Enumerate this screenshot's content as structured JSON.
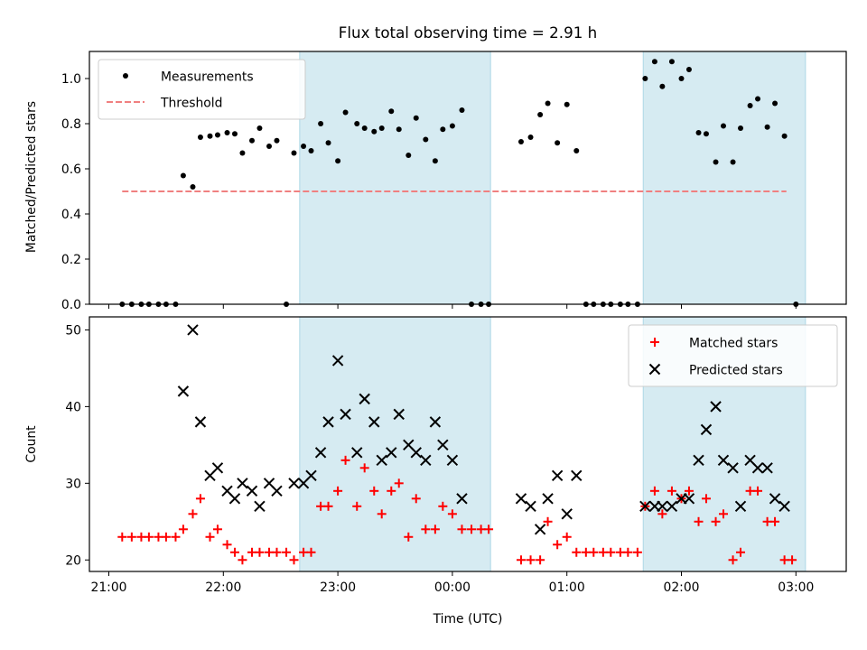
{
  "chart_data": [
    {
      "type": "scatter",
      "title": "Flux total observing time = 2.91 h",
      "xlabel": "",
      "ylabel": "Matched/Predicted stars",
      "ylim": [
        0,
        1.12
      ],
      "yticks": [
        "0.0",
        "0.2",
        "0.4",
        "0.6",
        "0.8",
        "1.0"
      ],
      "ytick_values": [
        0,
        0.2,
        0.4,
        0.6,
        0.8,
        1.0
      ],
      "legend_position": "top-left",
      "shaded_intervals": [
        [
          "22:40",
          "00:20"
        ],
        [
          "01:40",
          "03:05"
        ]
      ],
      "series": [
        {
          "name": "Measurements",
          "color": "#000000",
          "marker": "dot",
          "points": [
            [
              "21:07",
              0.0
            ],
            [
              "21:12",
              0.0
            ],
            [
              "21:17",
              0.0
            ],
            [
              "21:21",
              0.0
            ],
            [
              "21:26",
              0.0
            ],
            [
              "21:30",
              0.0
            ],
            [
              "21:35",
              0.0
            ],
            [
              "21:39",
              0.57
            ],
            [
              "21:44",
              0.52
            ],
            [
              "21:48",
              0.74
            ],
            [
              "21:53",
              0.745
            ],
            [
              "21:57",
              0.75
            ],
            [
              "22:02",
              0.76
            ],
            [
              "22:06",
              0.755
            ],
            [
              "22:10",
              0.67
            ],
            [
              "22:15",
              0.725
            ],
            [
              "22:19",
              0.78
            ],
            [
              "22:24",
              0.7
            ],
            [
              "22:28",
              0.725
            ],
            [
              "22:33",
              0.0
            ],
            [
              "22:37",
              0.67
            ],
            [
              "22:42",
              0.7
            ],
            [
              "22:46",
              0.68
            ],
            [
              "22:51",
              0.8
            ],
            [
              "22:55",
              0.715
            ],
            [
              "23:00",
              0.635
            ],
            [
              "23:04",
              0.85
            ],
            [
              "23:10",
              0.8
            ],
            [
              "23:14",
              0.78
            ],
            [
              "23:19",
              0.765
            ],
            [
              "23:23",
              0.78
            ],
            [
              "23:28",
              0.855
            ],
            [
              "23:32",
              0.775
            ],
            [
              "23:37",
              0.66
            ],
            [
              "23:41",
              0.825
            ],
            [
              "23:46",
              0.73
            ],
            [
              "23:51",
              0.635
            ],
            [
              "23:55",
              0.775
            ],
            [
              "00:00",
              0.79
            ],
            [
              "00:05",
              0.86
            ],
            [
              "00:10",
              0.0
            ],
            [
              "00:15",
              0.0
            ],
            [
              "00:19",
              0.0
            ],
            [
              "00:36",
              0.72
            ],
            [
              "00:41",
              0.74
            ],
            [
              "00:46",
              0.84
            ],
            [
              "00:50",
              0.89
            ],
            [
              "00:55",
              0.715
            ],
            [
              "01:00",
              0.885
            ],
            [
              "01:05",
              0.68
            ],
            [
              "01:10",
              0.0
            ],
            [
              "01:14",
              0.0
            ],
            [
              "01:19",
              0.0
            ],
            [
              "01:23",
              0.0
            ],
            [
              "01:28",
              0.0
            ],
            [
              "01:32",
              0.0
            ],
            [
              "01:37",
              0.0
            ],
            [
              "01:41",
              1.0
            ],
            [
              "01:46",
              1.075
            ],
            [
              "01:50",
              0.965
            ],
            [
              "01:55",
              1.075
            ],
            [
              "02:00",
              1.0
            ],
            [
              "02:04",
              1.04
            ],
            [
              "02:09",
              0.76
            ],
            [
              "02:13",
              0.755
            ],
            [
              "02:18",
              0.63
            ],
            [
              "02:22",
              0.79
            ],
            [
              "02:27",
              0.63
            ],
            [
              "02:31",
              0.78
            ],
            [
              "02:36",
              0.88
            ],
            [
              "02:40",
              0.91
            ],
            [
              "02:45",
              0.785
            ],
            [
              "02:49",
              0.89
            ],
            [
              "02:54",
              0.745
            ],
            [
              "03:00",
              0.0
            ]
          ]
        },
        {
          "name": "Threshold",
          "color": "#f08080",
          "style": "dashed",
          "points": [
            [
              "21:07",
              0.5
            ],
            [
              "02:55",
              0.5
            ]
          ]
        }
      ]
    },
    {
      "type": "scatter",
      "title": "",
      "xlabel": "Time (UTC)",
      "ylabel": "Count",
      "ylim": [
        18.5,
        51.7
      ],
      "yticks": [
        "20",
        "30",
        "40",
        "50"
      ],
      "ytick_values": [
        20,
        30,
        40,
        50
      ],
      "xticks": [
        "21:00",
        "22:00",
        "23:00",
        "00:00",
        "01:00",
        "02:00",
        "03:00"
      ],
      "legend_position": "top-right",
      "shaded_intervals": [
        [
          "22:40",
          "00:20"
        ],
        [
          "01:40",
          "03:05"
        ]
      ],
      "series": [
        {
          "name": "Matched stars",
          "color": "#ff0000",
          "marker": "plus",
          "points": [
            [
              "21:07",
              23
            ],
            [
              "21:12",
              23
            ],
            [
              "21:17",
              23
            ],
            [
              "21:21",
              23
            ],
            [
              "21:26",
              23
            ],
            [
              "21:30",
              23
            ],
            [
              "21:35",
              23
            ],
            [
              "21:39",
              24
            ],
            [
              "21:44",
              26
            ],
            [
              "21:48",
              28
            ],
            [
              "21:53",
              23
            ],
            [
              "21:57",
              24
            ],
            [
              "22:02",
              22
            ],
            [
              "22:06",
              21
            ],
            [
              "22:10",
              20
            ],
            [
              "22:15",
              21
            ],
            [
              "22:19",
              21
            ],
            [
              "22:24",
              21
            ],
            [
              "22:28",
              21
            ],
            [
              "22:33",
              21
            ],
            [
              "22:37",
              20
            ],
            [
              "22:42",
              21
            ],
            [
              "22:46",
              21
            ],
            [
              "22:51",
              27
            ],
            [
              "22:55",
              27
            ],
            [
              "23:00",
              29
            ],
            [
              "23:04",
              33
            ],
            [
              "23:10",
              27
            ],
            [
              "23:14",
              32
            ],
            [
              "23:19",
              29
            ],
            [
              "23:23",
              26
            ],
            [
              "23:28",
              29
            ],
            [
              "23:32",
              30
            ],
            [
              "23:37",
              23
            ],
            [
              "23:41",
              28
            ],
            [
              "23:46",
              24
            ],
            [
              "23:51",
              24
            ],
            [
              "23:55",
              27
            ],
            [
              "00:00",
              26
            ],
            [
              "00:05",
              24
            ],
            [
              "00:10",
              24
            ],
            [
              "00:15",
              24
            ],
            [
              "00:19",
              24
            ],
            [
              "00:36",
              20
            ],
            [
              "00:41",
              20
            ],
            [
              "00:46",
              20
            ],
            [
              "00:50",
              25
            ],
            [
              "00:55",
              22
            ],
            [
              "01:00",
              23
            ],
            [
              "01:05",
              21
            ],
            [
              "01:10",
              21
            ],
            [
              "01:14",
              21
            ],
            [
              "01:19",
              21
            ],
            [
              "01:23",
              21
            ],
            [
              "01:28",
              21
            ],
            [
              "01:32",
              21
            ],
            [
              "01:37",
              21
            ],
            [
              "01:41",
              27
            ],
            [
              "01:46",
              29
            ],
            [
              "01:50",
              26
            ],
            [
              "01:55",
              29
            ],
            [
              "02:00",
              28
            ],
            [
              "02:04",
              29
            ],
            [
              "02:09",
              25
            ],
            [
              "02:13",
              28
            ],
            [
              "02:18",
              25
            ],
            [
              "02:22",
              26
            ],
            [
              "02:27",
              20
            ],
            [
              "02:31",
              21
            ],
            [
              "02:36",
              29
            ],
            [
              "02:40",
              29
            ],
            [
              "02:45",
              25
            ],
            [
              "02:49",
              25
            ],
            [
              "02:54",
              20
            ],
            [
              "02:58",
              20
            ]
          ]
        },
        {
          "name": "Predicted stars",
          "color": "#000000",
          "marker": "x",
          "points": [
            [
              "21:39",
              42
            ],
            [
              "21:44",
              50
            ],
            [
              "21:48",
              38
            ],
            [
              "21:53",
              31
            ],
            [
              "21:57",
              32
            ],
            [
              "22:02",
              29
            ],
            [
              "22:06",
              28
            ],
            [
              "22:10",
              30
            ],
            [
              "22:15",
              29
            ],
            [
              "22:19",
              27
            ],
            [
              "22:24",
              30
            ],
            [
              "22:28",
              29
            ],
            [
              "22:37",
              30
            ],
            [
              "22:42",
              30
            ],
            [
              "22:46",
              31
            ],
            [
              "22:51",
              34
            ],
            [
              "22:55",
              38
            ],
            [
              "23:00",
              46
            ],
            [
              "23:04",
              39
            ],
            [
              "23:10",
              34
            ],
            [
              "23:14",
              41
            ],
            [
              "23:19",
              38
            ],
            [
              "23:23",
              33
            ],
            [
              "23:28",
              34
            ],
            [
              "23:32",
              39
            ],
            [
              "23:37",
              35
            ],
            [
              "23:41",
              34
            ],
            [
              "23:46",
              33
            ],
            [
              "23:51",
              38
            ],
            [
              "23:55",
              35
            ],
            [
              "00:00",
              33
            ],
            [
              "00:05",
              28
            ],
            [
              "00:36",
              28
            ],
            [
              "00:41",
              27
            ],
            [
              "00:46",
              24
            ],
            [
              "00:50",
              28
            ],
            [
              "00:55",
              31
            ],
            [
              "01:00",
              26
            ],
            [
              "01:05",
              31
            ],
            [
              "01:41",
              27
            ],
            [
              "01:46",
              27
            ],
            [
              "01:50",
              27
            ],
            [
              "01:55",
              27
            ],
            [
              "02:00",
              28
            ],
            [
              "02:04",
              28
            ],
            [
              "02:09",
              33
            ],
            [
              "02:13",
              37
            ],
            [
              "02:18",
              40
            ],
            [
              "02:22",
              33
            ],
            [
              "02:27",
              32
            ],
            [
              "02:31",
              27
            ],
            [
              "02:36",
              33
            ],
            [
              "02:40",
              32
            ],
            [
              "02:45",
              32
            ],
            [
              "02:49",
              28
            ],
            [
              "02:54",
              27
            ]
          ]
        }
      ]
    }
  ],
  "colors": {
    "shade": "#add8e6",
    "threshold": "#f08080",
    "matched": "#ff0000",
    "predicted": "#000000"
  }
}
